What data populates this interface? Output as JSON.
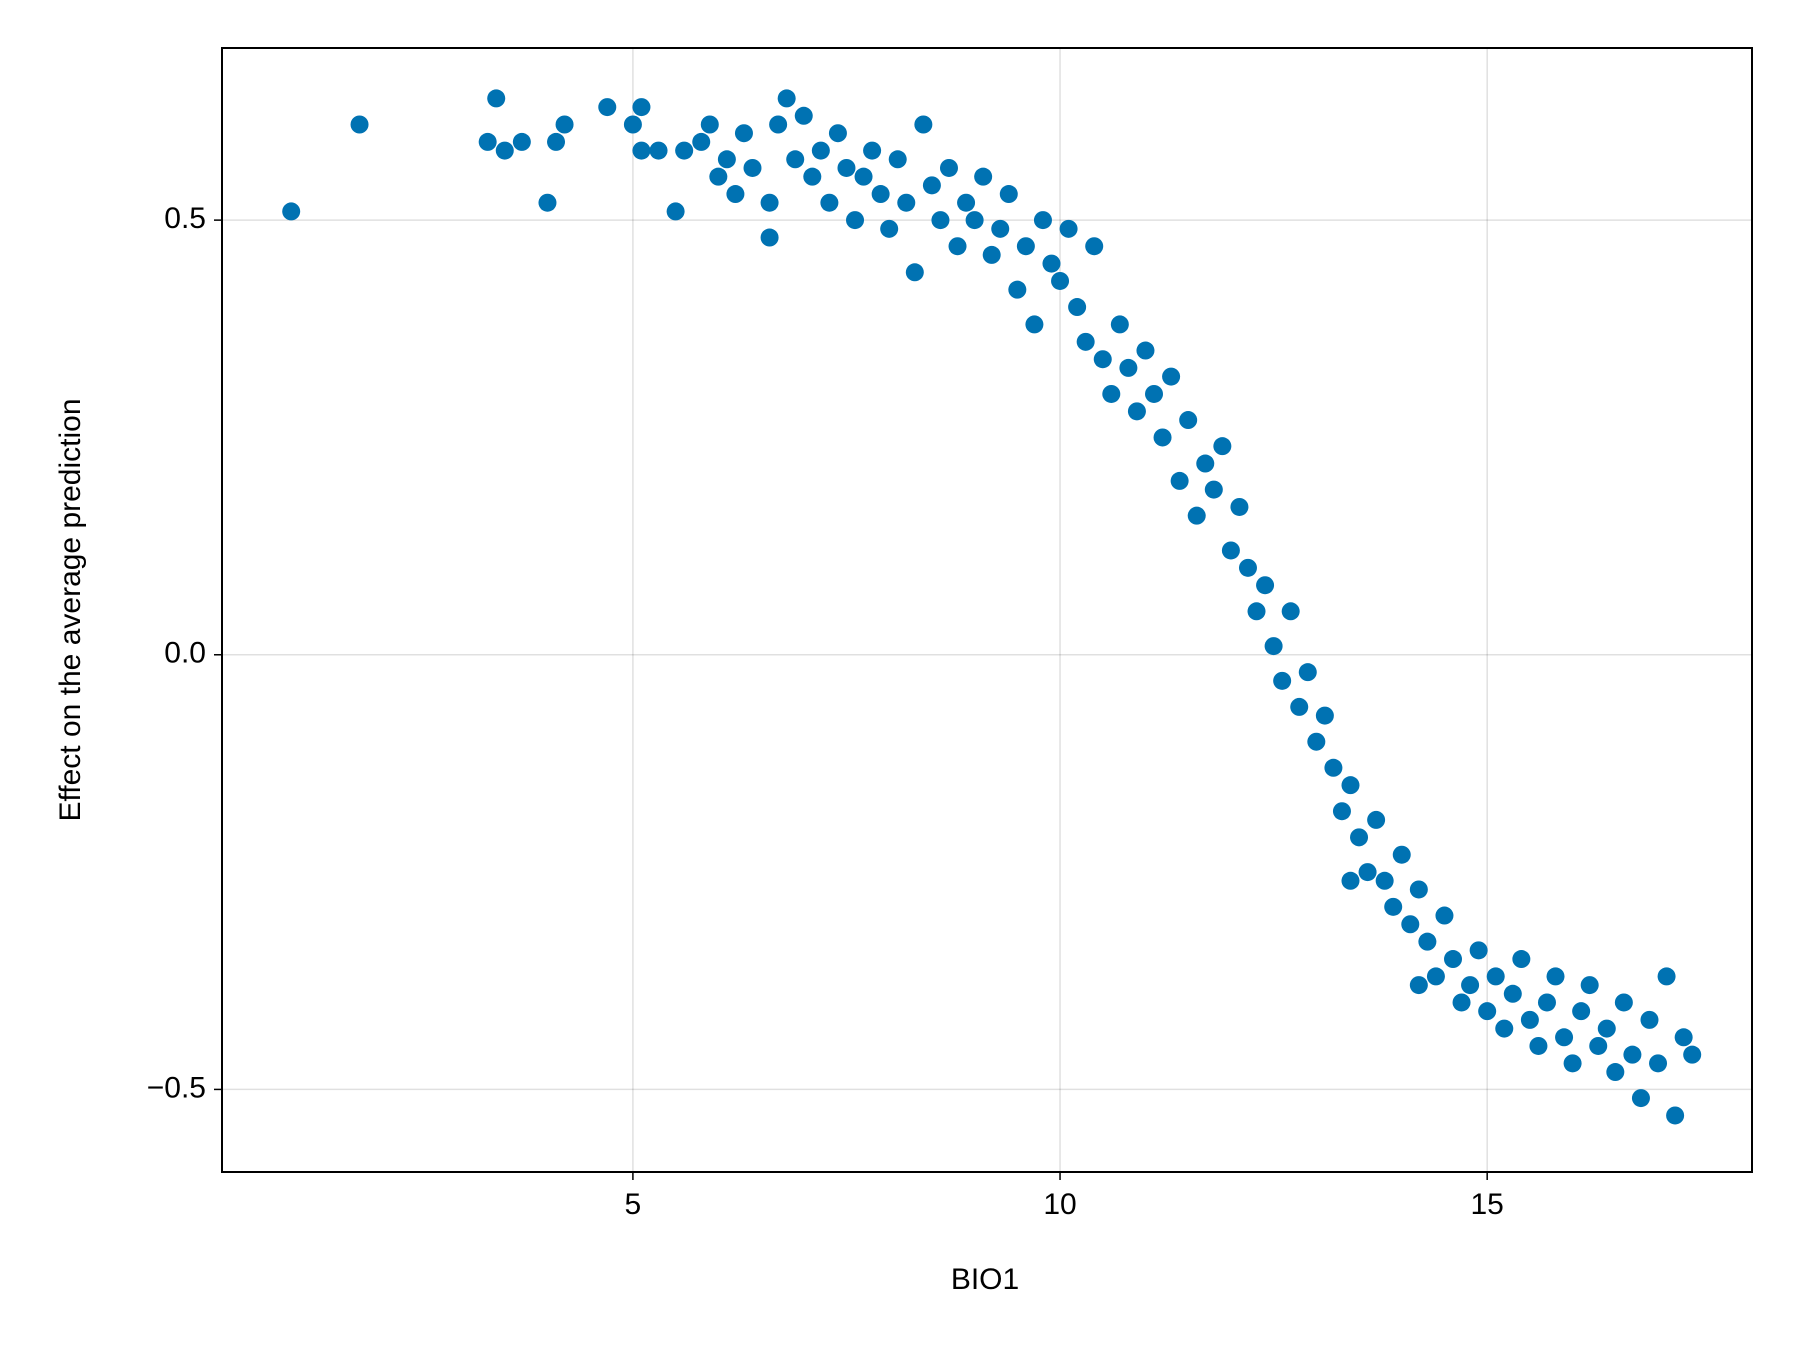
{
  "chart_data": {
    "type": "scatter",
    "x_label": "BIO1",
    "y_label": "Effect on the average prediction",
    "color": "#0072b2",
    "grid": true,
    "xlim": [
      0.19,
      18.1
    ],
    "ylim": [
      -0.595,
      0.698
    ],
    "xticks": [
      5,
      10,
      15
    ],
    "yticks": [
      {
        "value": -0.5,
        "label": "−0.5"
      },
      {
        "value": 0,
        "label": "0.0"
      },
      {
        "value": 0.5,
        "label": "0.5"
      }
    ],
    "x": [
      1.0,
      1.8,
      3.3,
      3.4,
      3.5,
      3.7,
      4.0,
      4.1,
      4.2,
      4.7,
      5.0,
      5.1,
      5.1,
      5.5,
      5.3,
      5.6,
      5.8,
      5.9,
      6.0,
      6.1,
      6.2,
      6.3,
      6.4,
      6.6,
      6.6,
      6.7,
      6.8,
      6.9,
      7.0,
      7.1,
      7.2,
      7.3,
      7.4,
      7.5,
      7.6,
      7.7,
      7.8,
      7.9,
      8.0,
      8.1,
      8.2,
      8.3,
      8.4,
      8.5,
      8.6,
      8.7,
      8.8,
      8.9,
      9.0,
      9.1,
      9.2,
      9.3,
      9.4,
      9.5,
      9.6,
      9.7,
      9.8,
      9.9,
      10.0,
      10.1,
      10.2,
      10.3,
      10.4,
      10.5,
      10.6,
      10.7,
      10.8,
      10.9,
      11.0,
      11.1,
      11.2,
      11.3,
      11.4,
      11.5,
      11.6,
      11.7,
      11.8,
      11.9,
      12.0,
      12.1,
      12.2,
      12.3,
      12.4,
      12.5,
      12.6,
      12.7,
      12.8,
      12.9,
      13.0,
      13.1,
      13.2,
      13.3,
      13.4,
      13.4,
      13.5,
      13.6,
      13.7,
      13.8,
      13.9,
      14.0,
      14.1,
      14.2,
      14.2,
      14.3,
      14.4,
      14.5,
      14.6,
      14.7,
      14.8,
      14.9,
      15.0,
      15.1,
      15.2,
      15.3,
      15.4,
      15.5,
      15.6,
      15.7,
      15.8,
      15.9,
      16.0,
      16.1,
      16.2,
      16.3,
      16.4,
      16.5,
      16.6,
      16.7,
      16.8,
      16.9,
      17.0,
      17.1,
      17.2,
      17.3,
      17.4
    ],
    "values": [
      0.51,
      0.61,
      0.59,
      0.64,
      0.58,
      0.59,
      0.52,
      0.59,
      0.61,
      0.63,
      0.61,
      0.63,
      0.58,
      0.51,
      0.58,
      0.58,
      0.59,
      0.61,
      0.55,
      0.57,
      0.53,
      0.6,
      0.56,
      0.52,
      0.48,
      0.61,
      0.64,
      0.57,
      0.62,
      0.55,
      0.58,
      0.52,
      0.6,
      0.56,
      0.5,
      0.55,
      0.58,
      0.53,
      0.49,
      0.57,
      0.52,
      0.44,
      0.61,
      0.54,
      0.5,
      0.56,
      0.47,
      0.52,
      0.5,
      0.55,
      0.46,
      0.49,
      0.53,
      0.42,
      0.47,
      0.38,
      0.5,
      0.45,
      0.43,
      0.49,
      0.4,
      0.36,
      0.47,
      0.34,
      0.3,
      0.38,
      0.33,
      0.28,
      0.35,
      0.3,
      0.25,
      0.32,
      0.2,
      0.27,
      0.16,
      0.22,
      0.19,
      0.24,
      0.12,
      0.17,
      0.1,
      0.05,
      0.08,
      0.01,
      -0.03,
      0.05,
      -0.06,
      -0.02,
      -0.1,
      -0.07,
      -0.13,
      -0.18,
      -0.15,
      -0.26,
      -0.21,
      -0.25,
      -0.19,
      -0.26,
      -0.29,
      -0.23,
      -0.31,
      -0.27,
      -0.38,
      -0.33,
      -0.37,
      -0.3,
      -0.35,
      -0.4,
      -0.38,
      -0.34,
      -0.41,
      -0.37,
      -0.43,
      -0.39,
      -0.35,
      -0.42,
      -0.45,
      -0.4,
      -0.37,
      -0.44,
      -0.47,
      -0.41,
      -0.38,
      -0.45,
      -0.43,
      -0.48,
      -0.4,
      -0.46,
      -0.51,
      -0.42,
      -0.47,
      -0.37,
      -0.53,
      -0.44,
      -0.46
    ]
  }
}
